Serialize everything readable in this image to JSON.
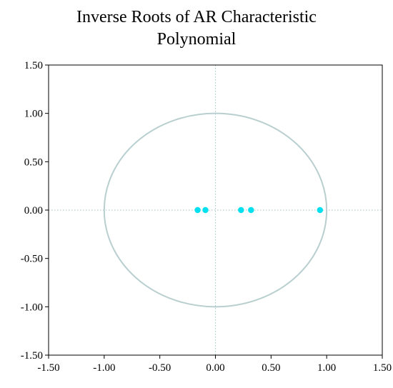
{
  "chart_data": {
    "type": "scatter",
    "title": [
      "Inverse Roots of AR Characteristic",
      "Polynomial"
    ],
    "xlabel": "",
    "ylabel": "",
    "xlim": [
      -1.5,
      1.5
    ],
    "ylim": [
      -1.5,
      1.5
    ],
    "x_ticks": [
      -1.5,
      -1.0,
      -0.5,
      0.0,
      0.5,
      1.0,
      1.5
    ],
    "y_ticks": [
      -1.5,
      -1.0,
      -0.5,
      0.0,
      0.5,
      1.0,
      1.5
    ],
    "x_tick_labels": [
      "-1.50",
      "-1.00",
      "-0.50",
      "0.00",
      "0.50",
      "1.00",
      "1.50"
    ],
    "y_tick_labels": [
      "-1.50",
      "-1.00",
      "-0.50",
      "0.00",
      "0.50",
      "1.00",
      "1.50"
    ],
    "unit_circle": {
      "radius": 1.0,
      "color": "#b9cfcf"
    },
    "reference_lines": {
      "x": 0,
      "y": 0,
      "style": "dotted",
      "color": "#9fc4c4"
    },
    "points": [
      {
        "x": -0.16,
        "y": 0.0
      },
      {
        "x": -0.09,
        "y": 0.0
      },
      {
        "x": 0.23,
        "y": 0.0
      },
      {
        "x": 0.32,
        "y": 0.0
      },
      {
        "x": 0.94,
        "y": 0.0
      }
    ],
    "point_color": "#00e0ef",
    "grid": false,
    "legend": "none"
  }
}
